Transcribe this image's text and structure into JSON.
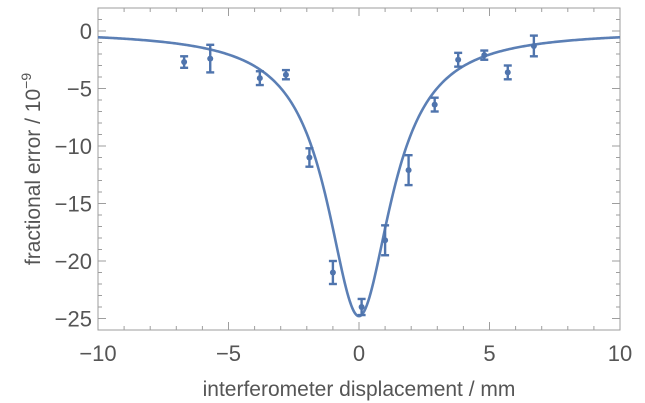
{
  "chart_data": {
    "type": "scatter",
    "xlabel": "interferometer displacement / mm",
    "ylabel_text": "fractional error / 10",
    "ylabel_exponent": "−9",
    "xlim": [
      -10,
      10
    ],
    "ylim": [
      -26,
      2
    ],
    "x_ticks": [
      -10,
      -5,
      0,
      5,
      10
    ],
    "y_ticks": [
      0,
      -5,
      -10,
      -15,
      -20,
      -25
    ],
    "x_tick_labels": [
      "−10",
      "−5",
      "0",
      "5",
      "10"
    ],
    "y_tick_labels": [
      "0",
      "−5",
      "−10",
      "−15",
      "−20",
      "−25"
    ],
    "grid": false,
    "color": "#4f74ad",
    "series": [
      {
        "points": [
          {
            "x": -6.7,
            "y": -2.7,
            "err": 0.5
          },
          {
            "x": -5.7,
            "y": -2.4,
            "err": 1.2
          },
          {
            "x": -3.8,
            "y": -4.1,
            "err": 0.6
          },
          {
            "x": -2.8,
            "y": -3.8,
            "err": 0.4
          },
          {
            "x": -1.9,
            "y": -11.0,
            "err": 0.8
          },
          {
            "x": -1.0,
            "y": -21.0,
            "err": 1.0
          },
          {
            "x": 0.1,
            "y": -24.0,
            "err": 0.7
          },
          {
            "x": 1.0,
            "y": -18.2,
            "err": 1.3
          },
          {
            "x": 1.9,
            "y": -12.1,
            "err": 1.3
          },
          {
            "x": 2.9,
            "y": -6.4,
            "err": 0.6
          },
          {
            "x": 3.8,
            "y": -2.5,
            "err": 0.6
          },
          {
            "x": 4.8,
            "y": -2.1,
            "err": 0.4
          },
          {
            "x": 5.7,
            "y": -3.6,
            "err": 0.6
          },
          {
            "x": 6.7,
            "y": -1.3,
            "err": 0.9
          }
        ]
      }
    ],
    "fit": {
      "model": "lorentzian",
      "offset": 0.0,
      "amplitude": -24.8,
      "center": 0.0,
      "hwhm": 1.5
    }
  }
}
